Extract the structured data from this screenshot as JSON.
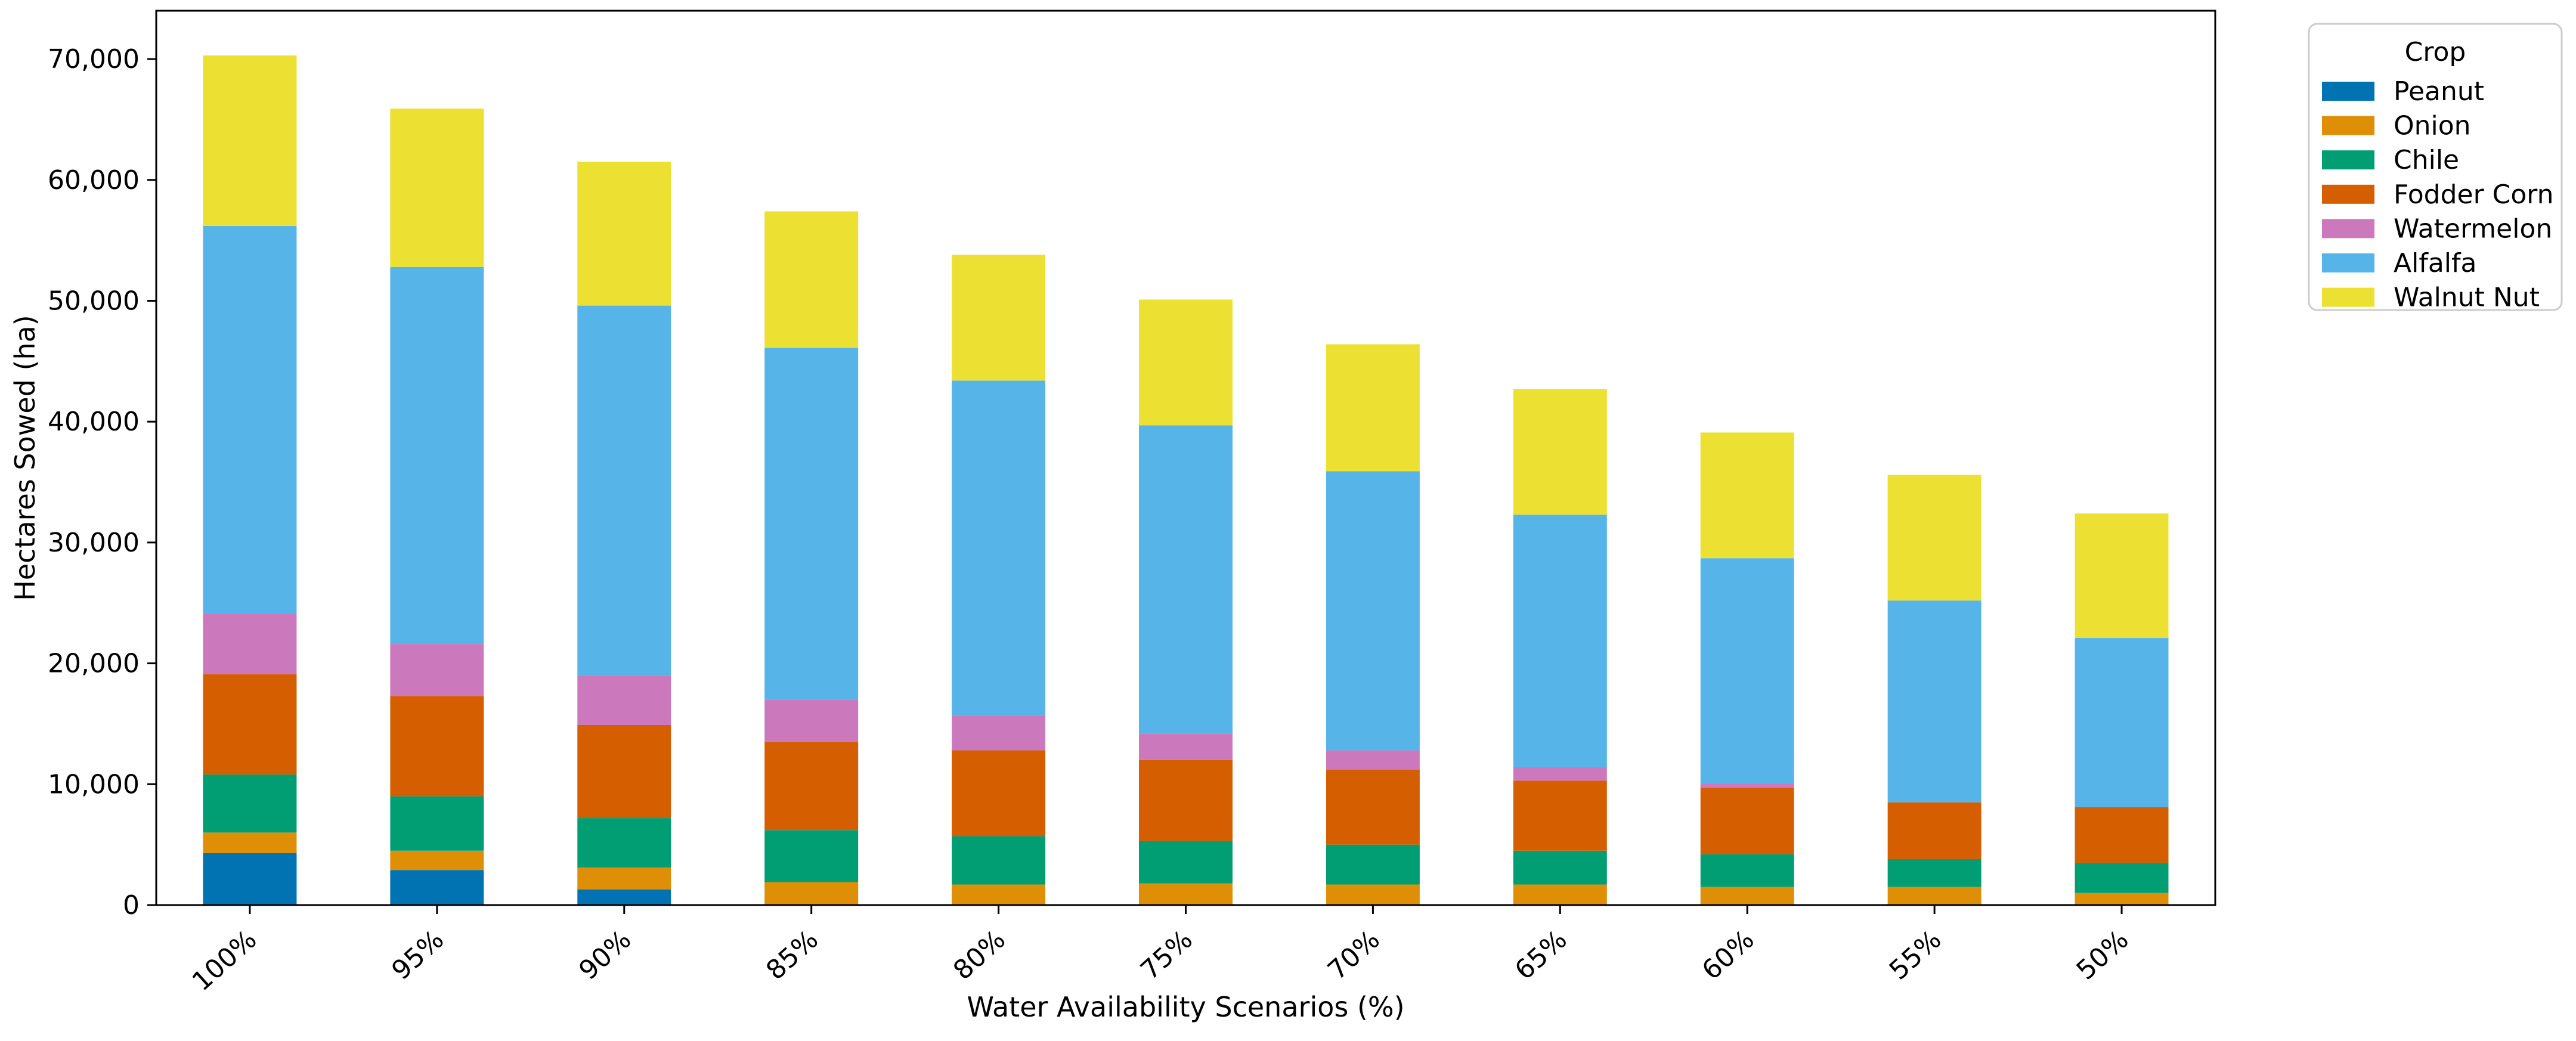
{
  "figure": {
    "background": "#ffffff",
    "axis_color": "#000000",
    "legend_border_color": "#cccccc",
    "xlabel": "Water Availability Scenarios (%)",
    "ylabel": "Hectares Sowed (ha)",
    "legend_title": "Crop",
    "y_tick_labels": [
      "0",
      "10,000",
      "20,000",
      "30,000",
      "40,000",
      "50,000",
      "60,000",
      "70,000"
    ]
  },
  "chart_data": {
    "type": "bar",
    "stacked": true,
    "title": "",
    "xlabel": "Water Availability Scenarios (%)",
    "ylabel": "Hectares Sowed (ha)",
    "legend_title": "Crop",
    "legend_position": "outside-right",
    "grid": false,
    "categories": [
      "100%",
      "95%",
      "90%",
      "85%",
      "80%",
      "75%",
      "70%",
      "65%",
      "60%",
      "55%",
      "50%"
    ],
    "ylim": [
      0,
      74000
    ],
    "y_tick_step": 10000,
    "y_tick_values": [
      0,
      10000,
      20000,
      30000,
      40000,
      50000,
      60000,
      70000
    ],
    "series": [
      {
        "name": "Peanut",
        "color": "#0173b2",
        "values": [
          4300,
          2900,
          1300,
          0,
          0,
          0,
          0,
          0,
          0,
          0,
          0
        ]
      },
      {
        "name": "Onion",
        "color": "#de8f05",
        "values": [
          1700,
          1600,
          1800,
          1900,
          1700,
          1800,
          1700,
          1700,
          1500,
          1500,
          1000
        ]
      },
      {
        "name": "Chile",
        "color": "#029e73",
        "values": [
          4800,
          4500,
          4100,
          4300,
          4000,
          3500,
          3300,
          2800,
          2700,
          2300,
          2500
        ]
      },
      {
        "name": "Fodder Corn",
        "color": "#d55e00",
        "values": [
          8300,
          8300,
          7700,
          7300,
          7100,
          6700,
          6200,
          5800,
          5500,
          4700,
          4600
        ]
      },
      {
        "name": "Watermelon",
        "color": "#cc78bc",
        "values": [
          5000,
          4300,
          4100,
          3500,
          2900,
          2200,
          1600,
          1100,
          400,
          0,
          0
        ]
      },
      {
        "name": "Alfalfa",
        "color": "#56b4e9",
        "values": [
          32100,
          31200,
          30600,
          29100,
          27700,
          25500,
          23100,
          20900,
          18600,
          16700,
          14000
        ]
      },
      {
        "name": "Walnut Nut",
        "color": "#ece133",
        "values": [
          14100,
          13100,
          11900,
          11300,
          10400,
          10400,
          10500,
          10400,
          10400,
          10400,
          10300
        ]
      }
    ],
    "totals": [
      70300,
      65900,
      61500,
      57400,
      53800,
      50100,
      46400,
      42700,
      39100,
      35600,
      32400
    ]
  }
}
